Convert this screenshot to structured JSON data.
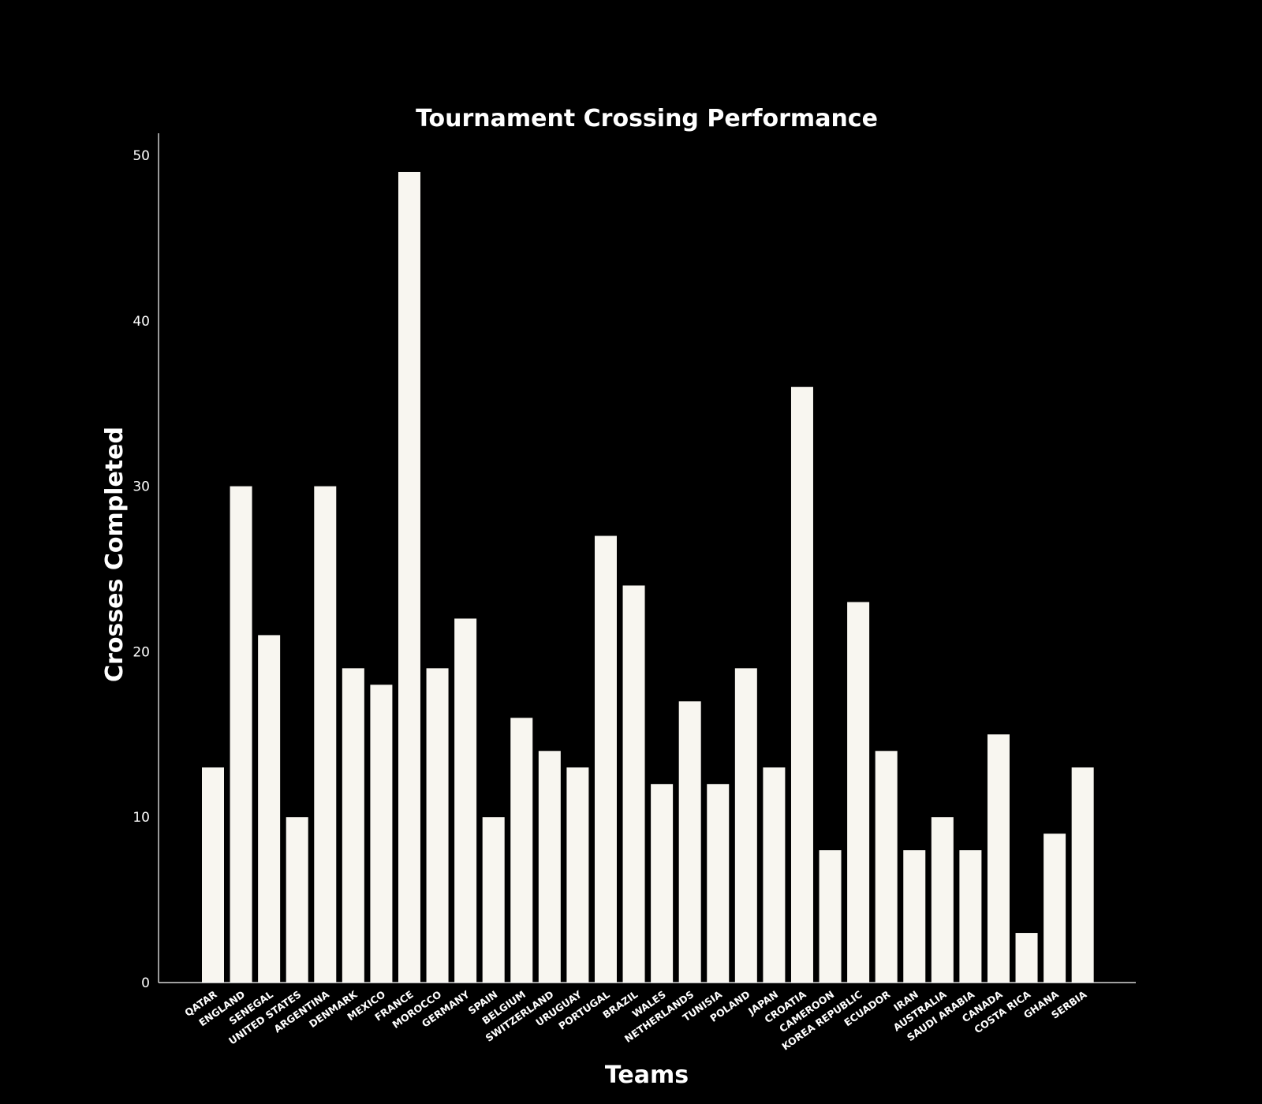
{
  "chart_data": {
    "type": "bar",
    "title": "Tournament Crossing Performance",
    "xlabel": "Teams",
    "ylabel": "Crosses Completed",
    "categories": [
      "QATAR",
      "ENGLAND",
      "SENEGAL",
      "UNITED STATES",
      "ARGENTINA",
      "DENMARK",
      "MEXICO",
      "FRANCE",
      "MOROCCO",
      "GERMANY",
      "SPAIN",
      "BELGIUM",
      "SWITZERLAND",
      "URUGUAY",
      "PORTUGAL",
      "BRAZIL",
      "WALES",
      "NETHERLANDS",
      "TUNISIA",
      "POLAND",
      "JAPAN",
      "CROATIA",
      "CAMEROON",
      "KOREA REPUBLIC",
      "ECUADOR",
      "IRAN",
      "AUSTRALIA",
      "SAUDI ARABIA",
      "CANADA",
      "COSTA RICA",
      "GHANA",
      "SERBIA"
    ],
    "values": [
      13,
      30,
      21,
      10,
      30,
      19,
      18,
      49,
      19,
      22,
      10,
      16,
      14,
      13,
      27,
      24,
      12,
      17,
      12,
      19,
      13,
      36,
      8,
      23,
      14,
      8,
      10,
      8,
      15,
      3,
      9,
      13
    ],
    "ylim": [
      0,
      51.5
    ],
    "yticks": [
      "0",
      "10",
      "20",
      "30",
      "40",
      "50"
    ],
    "grid": false,
    "colors": {
      "background": "#000000",
      "bar": "#f8f6f0",
      "text": "#ffffff"
    }
  }
}
